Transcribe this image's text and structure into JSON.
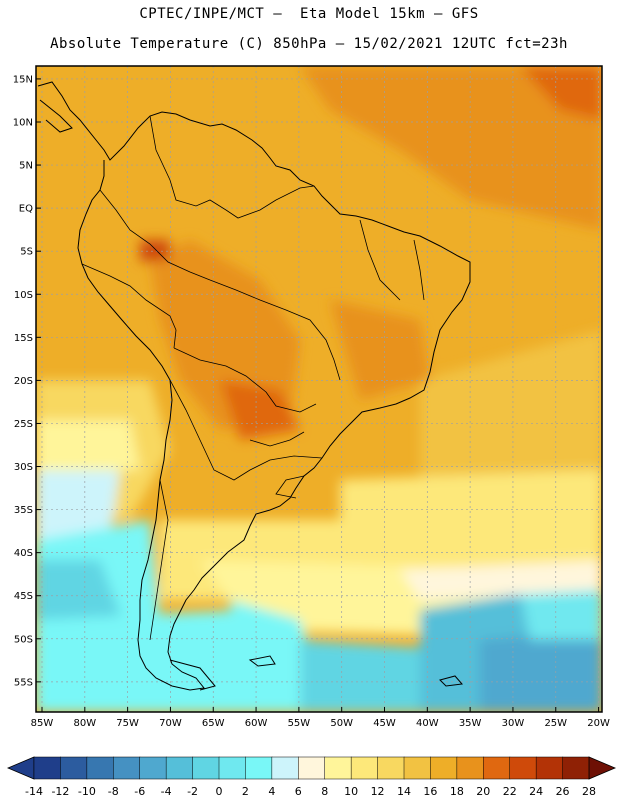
{
  "header": {
    "line1": "CPTEC/INPE/MCT –  Eta Model 15km – GFS",
    "line2": "Absolute Temperature (C) 850hPa – 15/02/2021 12UTC fct=23h"
  },
  "map": {
    "lat_labels": [
      "15N",
      "10N",
      "5N",
      "EQ",
      "5S",
      "10S",
      "15S",
      "20S",
      "25S",
      "30S",
      "35S",
      "40S",
      "45S",
      "50S",
      "55S"
    ],
    "lon_labels": [
      "85W",
      "80W",
      "75W",
      "70W",
      "65W",
      "60W",
      "55W",
      "50W",
      "45W",
      "40W",
      "35W",
      "30W",
      "25W",
      "20W"
    ]
  },
  "colorbar": {
    "labels": [
      "-14",
      "-12",
      "-10",
      "-8",
      "-6",
      "-4",
      "-2",
      "0",
      "2",
      "4",
      "6",
      "8",
      "10",
      "12",
      "14",
      "16",
      "18",
      "20",
      "22",
      "24",
      "26",
      "28"
    ],
    "colors": [
      "#1f3e8a",
      "#2c5c9f",
      "#3777b0",
      "#4591c2",
      "#4fa8cf",
      "#55bfd9",
      "#60d5e3",
      "#6fe8ef",
      "#79f7f7",
      "#cdf4fb",
      "#fff6dc",
      "#fff59a",
      "#fde87a",
      "#f8d860",
      "#f2c242",
      "#eeae28",
      "#e8921c",
      "#e06810",
      "#cf4a0a",
      "#b33306",
      "#8f2105"
    ]
  }
}
